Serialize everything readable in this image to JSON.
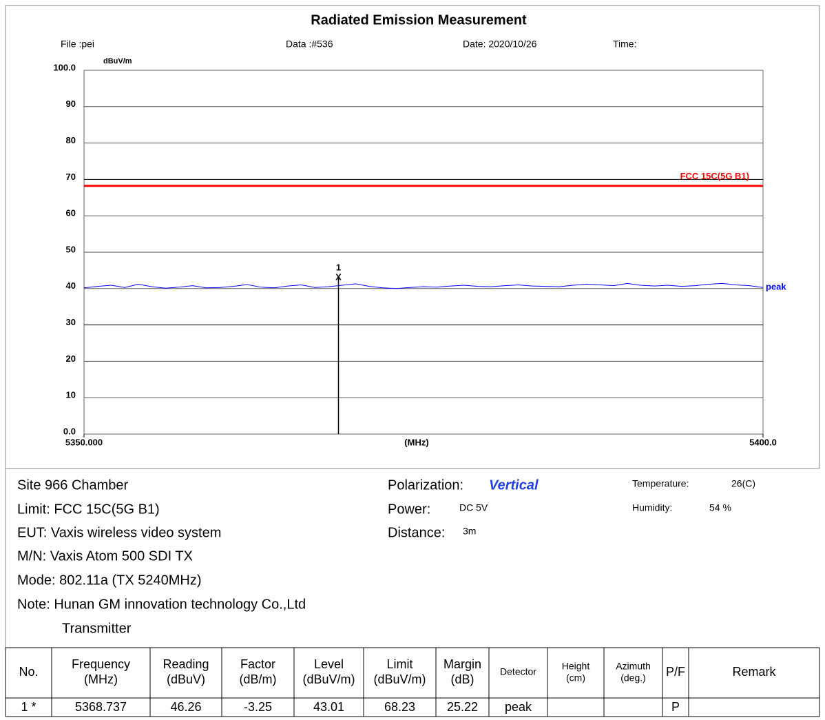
{
  "chart_data": {
    "type": "line",
    "title": "Radiated Emission Measurement",
    "file": "File :pei",
    "data_no": "Data :#536",
    "date": "Date: 2020/10/26",
    "time": "Time:",
    "y_label": "dBuV/m",
    "x_label": "(MHz)",
    "xlim": [
      5350,
      5400
    ],
    "xticks": [
      {
        "value": 5350,
        "label": "5350.000"
      },
      {
        "value": 5400,
        "label": "5400.0"
      }
    ],
    "ylim": [
      0,
      100
    ],
    "yticks": [
      {
        "value": 0,
        "label": "0.0"
      },
      10,
      20,
      30,
      40,
      50,
      60,
      70,
      80,
      90,
      {
        "value": 100,
        "label": "100.0"
      }
    ],
    "grid": true,
    "limit": {
      "name": "FCC 15C(5G B1)",
      "value": 68.23,
      "color": "#ff0000"
    },
    "x": [
      5350,
      5351,
      5352,
      5353,
      5354,
      5355,
      5356,
      5357,
      5358,
      5359,
      5360,
      5361,
      5362,
      5363,
      5364,
      5365,
      5366,
      5367,
      5368,
      5369,
      5370,
      5371,
      5372,
      5373,
      5374,
      5375,
      5376,
      5377,
      5378,
      5379,
      5380,
      5381,
      5382,
      5383,
      5384,
      5385,
      5386,
      5387,
      5388,
      5389,
      5390,
      5391,
      5392,
      5393,
      5394,
      5395,
      5396,
      5397,
      5398,
      5399,
      5400
    ],
    "series": [
      {
        "name": "peak",
        "color": "#0000ff",
        "values": [
          40.2,
          40.6,
          40.9,
          40.3,
          41.2,
          40.5,
          40.1,
          40.4,
          40.8,
          40.2,
          40.3,
          40.6,
          41.1,
          40.4,
          40.2,
          40.7,
          41.0,
          40.3,
          40.5,
          40.9,
          41.3,
          40.6,
          40.2,
          40.0,
          40.3,
          40.5,
          40.4,
          40.7,
          40.9,
          40.6,
          40.5,
          40.8,
          41.0,
          40.7,
          40.6,
          40.5,
          40.9,
          41.2,
          41.0,
          40.8,
          41.4,
          40.9,
          40.7,
          40.9,
          40.6,
          40.8,
          41.2,
          41.4,
          41.0,
          40.8,
          40.3
        ]
      }
    ],
    "marker": {
      "label": "1",
      "symbol": "X",
      "x": 5368.737,
      "value": 43.01
    }
  },
  "info": {
    "left": [
      "Site 966 Chamber",
      "Limit: FCC 15C(5G B1)",
      "EUT: Vaxis wireless video system",
      "M/N: Vaxis Atom 500 SDI TX",
      "Mode: 802.11a (TX 5240MHz)",
      "Note: Hunan GM innovation technology Co.,Ltd",
      "Transmitter"
    ],
    "polarization_label": "Polarization:",
    "polarization": "Vertical",
    "power_label": "Power:",
    "power": "DC 5V",
    "distance_label": "Distance:",
    "distance": "3m",
    "temperature_label": "Temperature:",
    "temperature": "26(C)",
    "humidity_label": "Humidity:",
    "humidity": "54 %"
  },
  "table": {
    "header": [
      "No.",
      "Frequency\n(MHz)",
      "Reading\n(dBuV)",
      "Factor\n(dB/m)",
      "Level\n(dBuV/m)",
      "Limit\n(dBuV/m)",
      "Margin\n(dB)",
      "Detector",
      "Height\n(cm)",
      "Azimuth\n(deg.)",
      "P/F",
      "Remark"
    ],
    "rows": [
      [
        "1 *",
        "5368.737",
        "46.26",
        "-3.25",
        "43.01",
        "68.23",
        "25.22",
        "peak",
        null,
        null,
        "P",
        null
      ]
    ]
  }
}
